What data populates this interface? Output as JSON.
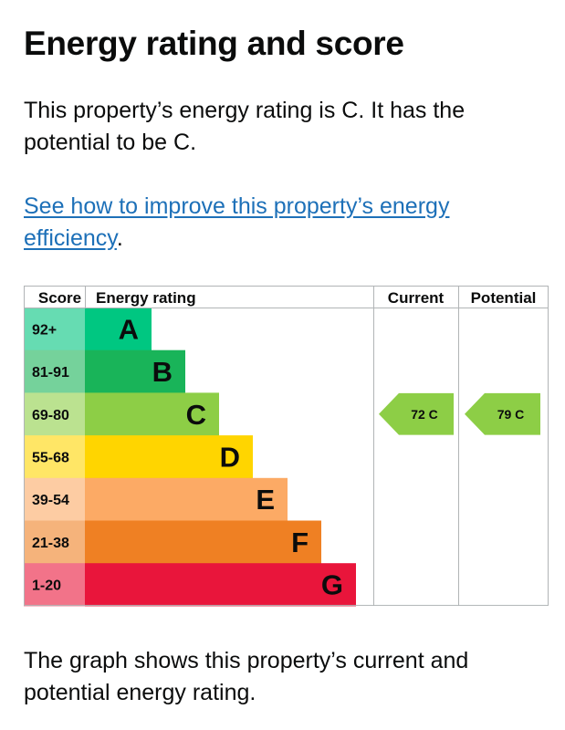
{
  "heading": "Energy rating and score",
  "summary": "This property’s energy rating is C. It has the potential to be C.",
  "improve_link": "See how to improve this property’s energy efficiency",
  "improve_suffix": ".",
  "caption": "The graph shows this property’s current and potential energy rating.",
  "chart_data": {
    "type": "bar",
    "columns": [
      "Score",
      "Energy rating",
      "Current",
      "Potential"
    ],
    "bands": [
      {
        "letter": "A",
        "score_range": "92+",
        "color": "#00c781",
        "tint": "#66dcb2"
      },
      {
        "letter": "B",
        "score_range": "81-91",
        "color": "#19b459",
        "tint": "#75d29b"
      },
      {
        "letter": "C",
        "score_range": "69-80",
        "color": "#8dce46",
        "tint": "#bbe290"
      },
      {
        "letter": "D",
        "score_range": "55-68",
        "color": "#ffd500",
        "tint": "#ffe666"
      },
      {
        "letter": "E",
        "score_range": "39-54",
        "color": "#fcaa65",
        "tint": "#fdcca3"
      },
      {
        "letter": "F",
        "score_range": "21-38",
        "color": "#ef8023",
        "tint": "#f5b37b"
      },
      {
        "letter": "G",
        "score_range": "1-20",
        "color": "#e9153b",
        "tint": "#f27389"
      }
    ],
    "current": {
      "score": 72,
      "band": "C",
      "label": "72 C"
    },
    "potential": {
      "score": 79,
      "band": "C",
      "label": "79 C"
    }
  }
}
